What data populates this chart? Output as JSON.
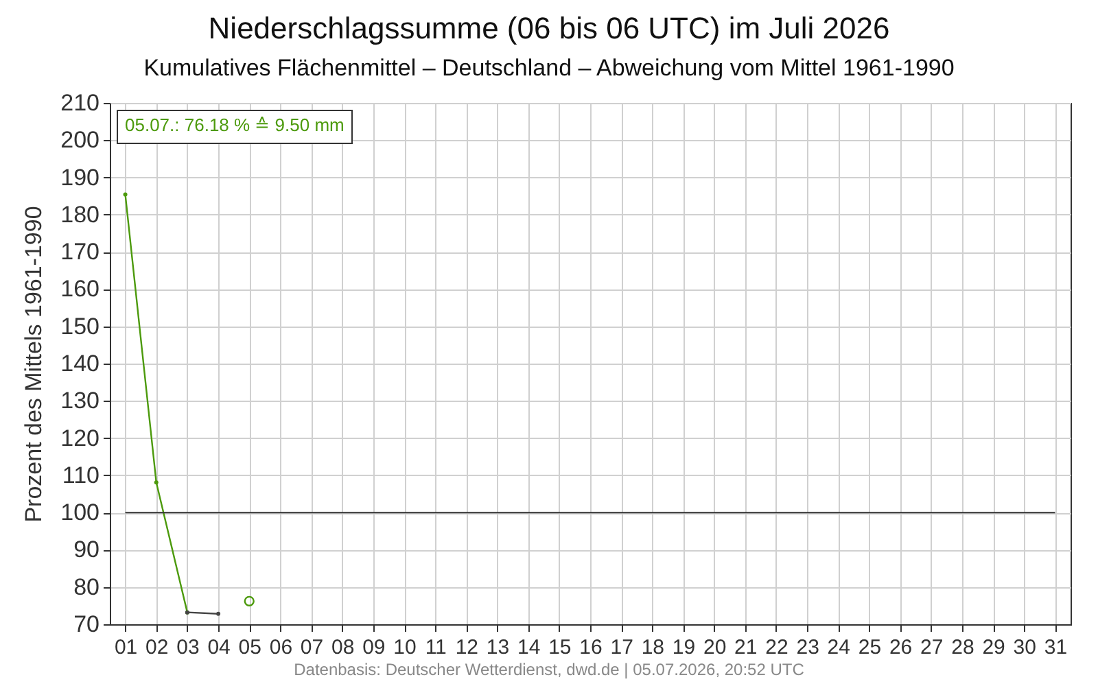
{
  "chart_data": {
    "type": "line",
    "title": "Niederschlagssumme (06 bis 06 UTC) im Juli 2026",
    "subtitle": "Kumulatives Flächenmittel – Deutschland – Abweichung vom Mittel 1961-1990",
    "ylabel": "Prozent des Mittels 1961-1990",
    "categories": [
      "01",
      "02",
      "03",
      "04",
      "05",
      "06",
      "07",
      "08",
      "09",
      "10",
      "11",
      "12",
      "13",
      "14",
      "15",
      "16",
      "17",
      "18",
      "19",
      "20",
      "21",
      "22",
      "23",
      "24",
      "25",
      "26",
      "27",
      "28",
      "29",
      "30",
      "31"
    ],
    "series": [
      {
        "color": "#4c9a0c",
        "values": [
          185.4,
          108.1,
          73.2,
          null,
          null,
          null,
          null,
          null,
          null,
          null,
          null,
          null,
          null,
          null,
          null,
          null,
          null,
          null,
          null,
          null,
          null,
          null,
          null,
          null,
          null,
          null,
          null,
          null,
          null,
          null,
          null
        ]
      },
      {
        "color": "#444444",
        "values": [
          null,
          null,
          73.2,
          72.8,
          null,
          null,
          null,
          null,
          null,
          null,
          null,
          null,
          null,
          null,
          null,
          null,
          null,
          null,
          null,
          null,
          null,
          null,
          null,
          null,
          null,
          null,
          null,
          null,
          null,
          null,
          null
        ]
      },
      {
        "type": "scatter",
        "name": "05.07.: 76.18 % ≙ 9.50 mm",
        "color": "#4c9a0c",
        "values": [
          null,
          null,
          null,
          null,
          76.2,
          null,
          null,
          null,
          null,
          null,
          null,
          null,
          null,
          null,
          null,
          null,
          null,
          null,
          null,
          null,
          null,
          null,
          null,
          null,
          null,
          null,
          null,
          null,
          null,
          null,
          null
        ]
      }
    ],
    "ylim": [
      70,
      210
    ],
    "yticks": [
      70,
      80,
      90,
      100,
      110,
      120,
      130,
      140,
      150,
      160,
      170,
      180,
      190,
      200,
      210
    ],
    "ref_lines": [
      {
        "axis": "y",
        "value": 100,
        "color": "#333333"
      }
    ],
    "grid": true,
    "legend": "top left",
    "marker": "circle",
    "annotations": [
      "Datenbasis: Deutscher Wetterdienst, dwd.de | 05.07.2026, 20:52 UTC"
    ]
  }
}
